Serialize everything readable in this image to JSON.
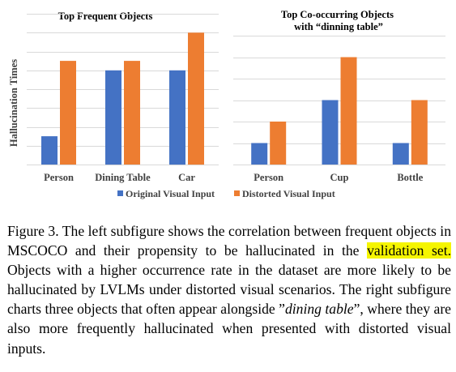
{
  "chart_data": [
    {
      "type": "bar",
      "title": "Top Frequent Objects",
      "ylabel": "Hallucination Times",
      "xlabel": "",
      "categories": [
        "Person",
        "Dining Table",
        "Car"
      ],
      "series": [
        {
          "name": "Original Visual Input",
          "values": [
            1.5,
            5.0,
            5.0
          ]
        },
        {
          "name": "Distorted Visual Input",
          "values": [
            5.5,
            5.5,
            7.0
          ]
        }
      ],
      "ylim": [
        0,
        8
      ],
      "grid": true,
      "y_tick_labels_shown": false
    },
    {
      "type": "bar",
      "title": "Top Co-occurring Objects with “dinning table”",
      "ylabel": "",
      "xlabel": "",
      "categories": [
        "Person",
        "Cup",
        "Bottle"
      ],
      "series": [
        {
          "name": "Original Visual Input",
          "values": [
            1,
            3,
            1
          ]
        },
        {
          "name": "Distorted Visual Input",
          "values": [
            2,
            5,
            3
          ]
        }
      ],
      "ylim": [
        0,
        6
      ],
      "grid": true,
      "y_tick_labels_shown": false
    }
  ],
  "legend": {
    "placement": "bottom-center",
    "items": [
      "Original Visual Input",
      "Distorted Visual Input"
    ]
  },
  "colors": {
    "original": "#4472C4",
    "distorted": "#ED7D31",
    "grid": "#d9d9d9",
    "axis_text": "#404040",
    "highlight": "#f5f500"
  },
  "caption": {
    "lead": "Figure 3. The left subfigure shows the correlation between frequent objects in MSCOCO and their propensity to be hallucinated in the ",
    "highlight": "validation set.",
    "middle": " Objects with a higher occurrence rate in the dataset are more likely to be hallucinated by LVLMs under distorted visual scenarios. The right subfigure charts three objects that often appear alongside ”",
    "italic": "dining table",
    "tail": "”, where they are also more frequently hallucinated when presented with distorted visual inputs."
  }
}
